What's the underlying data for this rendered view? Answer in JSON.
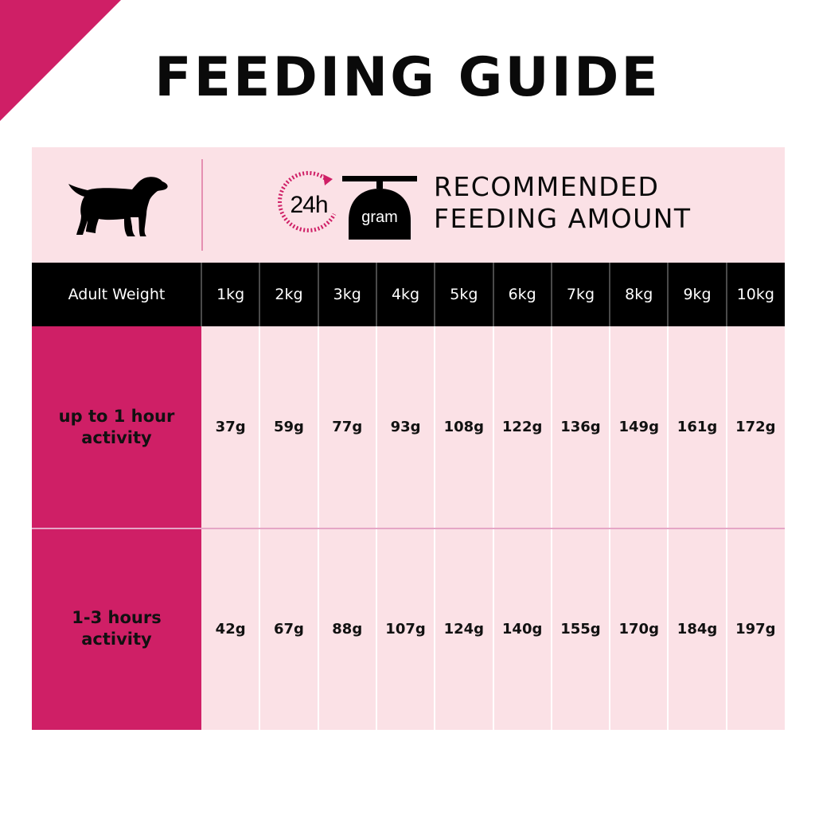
{
  "page": {
    "title": "FEEDING GUIDE"
  },
  "header": {
    "clock_text": "24h",
    "scale_text": "gram",
    "recommended_line1": "RECOMMENDED",
    "recommended_line2": "FEEDING AMOUNT",
    "icons": [
      "puppy-silhouette-icon",
      "24h-clock-icon",
      "scale-icon"
    ]
  },
  "colors": {
    "accent": "#cf1f66",
    "band": "#fbe1e6",
    "header_row": "#000000"
  },
  "table": {
    "row_header": "Adult Weight",
    "columns": [
      "1kg",
      "2kg",
      "3kg",
      "4kg",
      "5kg",
      "6kg",
      "7kg",
      "8kg",
      "9kg",
      "10kg"
    ],
    "rows": [
      {
        "label_line1": "up to 1 hour",
        "label_line2": "activity",
        "values": [
          "37g",
          "59g",
          "77g",
          "93g",
          "108g",
          "122g",
          "136g",
          "149g",
          "161g",
          "172g"
        ]
      },
      {
        "label_line1": "1-3 hours",
        "label_line2": "activity",
        "values": [
          "42g",
          "67g",
          "88g",
          "107g",
          "124g",
          "140g",
          "155g",
          "170g",
          "184g",
          "197g"
        ]
      }
    ]
  }
}
